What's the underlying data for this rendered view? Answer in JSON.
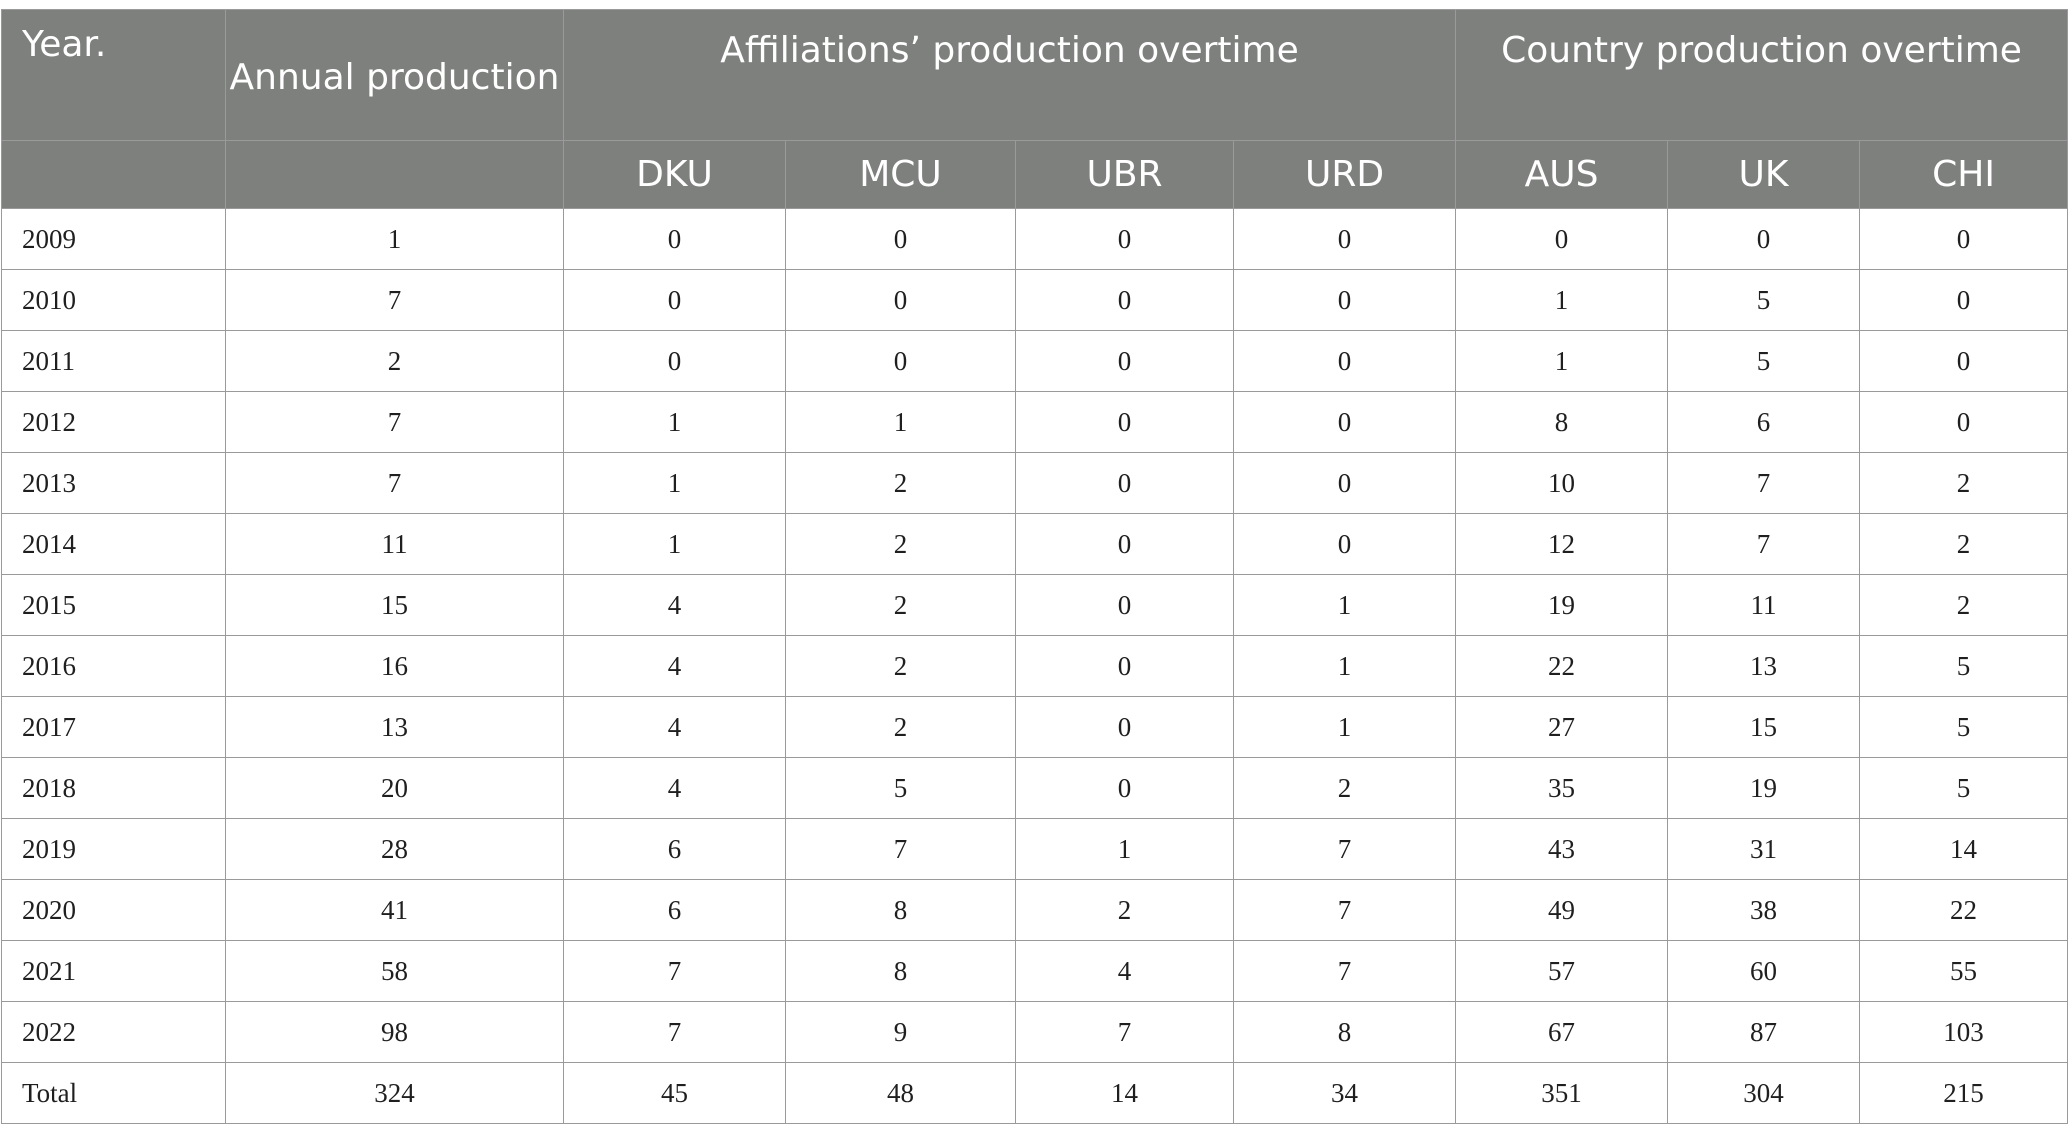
{
  "table": {
    "header": {
      "year": "Year.",
      "annual": "Annual production",
      "affiliations_group": "Affiliations’ production overtime",
      "country_group": "Country production overtime",
      "affiliations": [
        "DKU",
        "MCU",
        "UBR",
        "URD"
      ],
      "countries": [
        "AUS",
        "UK",
        "CHI"
      ]
    },
    "rows": [
      [
        "2009",
        "1",
        "0",
        "0",
        "0",
        "0",
        "0",
        "0",
        "0"
      ],
      [
        "2010",
        "7",
        "0",
        "0",
        "0",
        "0",
        "1",
        "5",
        "0"
      ],
      [
        "2011",
        "2",
        "0",
        "0",
        "0",
        "0",
        "1",
        "5",
        "0"
      ],
      [
        "2012",
        "7",
        "1",
        "1",
        "0",
        "0",
        "8",
        "6",
        "0"
      ],
      [
        "2013",
        "7",
        "1",
        "2",
        "0",
        "0",
        "10",
        "7",
        "2"
      ],
      [
        "2014",
        "11",
        "1",
        "2",
        "0",
        "0",
        "12",
        "7",
        "2"
      ],
      [
        "2015",
        "15",
        "4",
        "2",
        "0",
        "1",
        "19",
        "11",
        "2"
      ],
      [
        "2016",
        "16",
        "4",
        "2",
        "0",
        "1",
        "22",
        "13",
        "5"
      ],
      [
        "2017",
        "13",
        "4",
        "2",
        "0",
        "1",
        "27",
        "15",
        "5"
      ],
      [
        "2018",
        "20",
        "4",
        "5",
        "0",
        "2",
        "35",
        "19",
        "5"
      ],
      [
        "2019",
        "28",
        "6",
        "7",
        "1",
        "7",
        "43",
        "31",
        "14"
      ],
      [
        "2020",
        "41",
        "6",
        "8",
        "2",
        "7",
        "49",
        "38",
        "22"
      ],
      [
        "2021",
        "58",
        "7",
        "8",
        "4",
        "7",
        "57",
        "60",
        "55"
      ],
      [
        "2022",
        "98",
        "7",
        "9",
        "7",
        "8",
        "67",
        "87",
        "103"
      ],
      [
        "Total",
        "324",
        "45",
        "48",
        "14",
        "34",
        "351",
        "304",
        "215"
      ]
    ],
    "colors": {
      "header_bg": "#7e807e",
      "header_text": "#ffffff",
      "border": "#9a9a9a",
      "cell_text": "#1f1f1f"
    }
  }
}
